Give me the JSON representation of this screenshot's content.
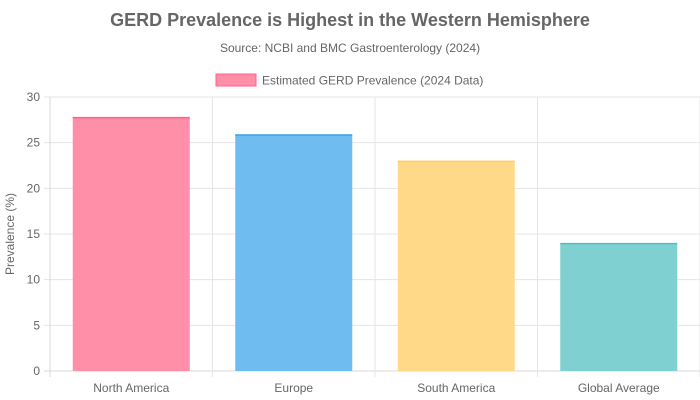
{
  "chart_data": {
    "type": "bar",
    "title": "GERD Prevalence is Highest in the Western Hemisphere",
    "subtitle": "Source: NCBI and BMC Gastroenterology (2024)",
    "xlabel": "",
    "ylabel": "Prevalence (%)",
    "ylim": [
      0,
      30
    ],
    "yticks": [
      "0",
      "5",
      "10",
      "15",
      "20",
      "25",
      "30"
    ],
    "grid": true,
    "legend_position": "top-center",
    "categories": [
      "North America",
      "Europe",
      "South America",
      "Global Average"
    ],
    "series": [
      {
        "name": "Estimated GERD Prevalence (2024 Data)",
        "values": [
          27.8,
          25.9,
          23.0,
          14.0
        ]
      }
    ],
    "colors": {
      "fills": [
        "#ff8fa8",
        "#6fbcf0",
        "#ffd987",
        "#7fd1d1"
      ],
      "borders": [
        "#ff6384",
        "#36a2eb",
        "#ffce56",
        "#4bc0c0"
      ],
      "legend_fill": "#ff8fa8",
      "legend_border": "#ff6384"
    }
  }
}
